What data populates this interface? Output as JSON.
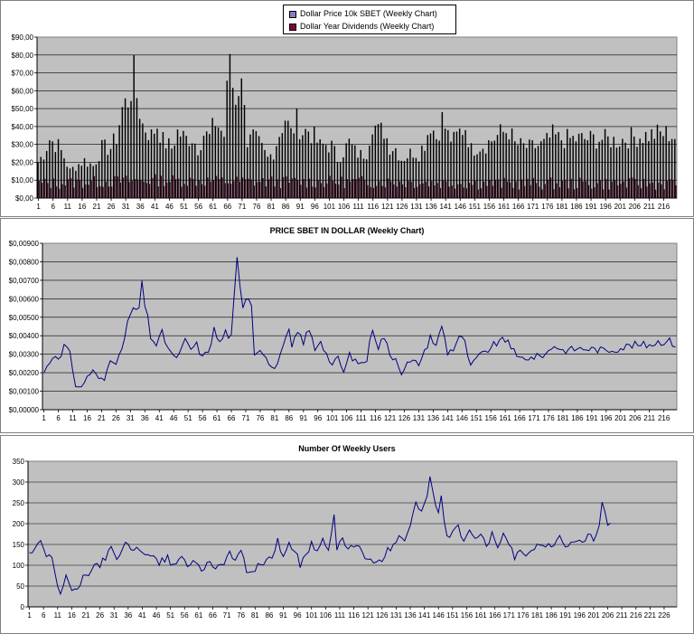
{
  "chart_data": [
    {
      "type": "bar",
      "title": "",
      "series": [
        {
          "name": "Dollar Price 10k SBET (Weekly Chart)",
          "color": "#8080c0",
          "values": []
        },
        {
          "name": "Dollar Year Dividends (Weekly Chart)",
          "color": "#800040",
          "values": []
        }
      ],
      "ylim": [
        0,
        90
      ],
      "yticks": [
        "$0,00",
        "$10,00",
        "$20,00",
        "$30,00",
        "$40,00",
        "$50,00",
        "$60,00",
        "$70,00",
        "$80,00",
        "$90,00"
      ],
      "xticks": [
        "1",
        "6",
        "11",
        "16",
        "21",
        "26",
        "31",
        "36",
        "41",
        "46",
        "51",
        "56",
        "61",
        "66",
        "71",
        "76",
        "81",
        "86",
        "91",
        "96",
        "101",
        "106",
        "111",
        "116",
        "121",
        "126",
        "131",
        "136",
        "141",
        "146",
        "151",
        "156",
        "161",
        "166",
        "171",
        "176",
        "181",
        "186",
        "191",
        "196",
        "201",
        "206",
        "211",
        "216"
      ],
      "n": 220,
      "price_points": [
        [
          1,
          20
        ],
        [
          3,
          25
        ],
        [
          5,
          33
        ],
        [
          8,
          29
        ],
        [
          10,
          23
        ],
        [
          12,
          15
        ],
        [
          14,
          18
        ],
        [
          17,
          21
        ],
        [
          20,
          18
        ],
        [
          23,
          28
        ],
        [
          26,
          28
        ],
        [
          28,
          34
        ],
        [
          30,
          50
        ],
        [
          32,
          55
        ],
        [
          34,
          68
        ],
        [
          35,
          57
        ],
        [
          37,
          41
        ],
        [
          40,
          35
        ],
        [
          42,
          41
        ],
        [
          44,
          32
        ],
        [
          47,
          28
        ],
        [
          49,
          37
        ],
        [
          52,
          33
        ],
        [
          54,
          34
        ],
        [
          56,
          28
        ],
        [
          58,
          36
        ],
        [
          60,
          34
        ],
        [
          62,
          43
        ],
        [
          65,
          35
        ],
        [
          67,
          82
        ],
        [
          68,
          63
        ],
        [
          69,
          57
        ],
        [
          70,
          63
        ],
        [
          72,
          60
        ],
        [
          73,
          31
        ],
        [
          75,
          34
        ],
        [
          77,
          30
        ],
        [
          80,
          22
        ],
        [
          82,
          26
        ],
        [
          84,
          36
        ],
        [
          86,
          45
        ],
        [
          88,
          36
        ],
        [
          90,
          43
        ],
        [
          92,
          37
        ],
        [
          94,
          38
        ],
        [
          96,
          34
        ],
        [
          98,
          29
        ],
        [
          100,
          30
        ],
        [
          102,
          29
        ],
        [
          104,
          22
        ],
        [
          106,
          26
        ],
        [
          108,
          31
        ],
        [
          110,
          26
        ],
        [
          112,
          24
        ],
        [
          114,
          26
        ],
        [
          116,
          43
        ],
        [
          118,
          37
        ],
        [
          120,
          38
        ],
        [
          122,
          29
        ],
        [
          124,
          28
        ],
        [
          126,
          22
        ],
        [
          128,
          24
        ],
        [
          130,
          26
        ],
        [
          132,
          25
        ],
        [
          134,
          31
        ],
        [
          136,
          42
        ],
        [
          138,
          34
        ],
        [
          140,
          44
        ],
        [
          142,
          35
        ],
        [
          144,
          32
        ],
        [
          146,
          37
        ],
        [
          148,
          40
        ],
        [
          150,
          27
        ],
        [
          152,
          29
        ],
        [
          155,
          30
        ],
        [
          160,
          36
        ],
        [
          163,
          38
        ],
        [
          165,
          30
        ],
        [
          170,
          28
        ],
        [
          175,
          30
        ],
        [
          178,
          35
        ],
        [
          180,
          33
        ],
        [
          185,
          33
        ],
        [
          190,
          33
        ],
        [
          195,
          33
        ],
        [
          200,
          32
        ],
        [
          205,
          34
        ],
        [
          210,
          35
        ],
        [
          215,
          36
        ],
        [
          218,
          36
        ],
        [
          220,
          34
        ]
      ],
      "div_points": [
        [
          1,
          8
        ],
        [
          40,
          10
        ],
        [
          80,
          9
        ],
        [
          120,
          9
        ],
        [
          160,
          8
        ],
        [
          200,
          8
        ],
        [
          220,
          8
        ]
      ]
    },
    {
      "type": "line",
      "title": "PRICE SBET IN DOLLAR (Weekly Chart)",
      "series": [
        {
          "name": "",
          "color": "#000080",
          "values": []
        }
      ],
      "ylim": [
        0,
        0.009
      ],
      "yticks": [
        "$0,00000",
        "$0,00100",
        "$0,00200",
        "$0,00300",
        "$0,00400",
        "$0,00500",
        "$0,00600",
        "$0,00700",
        "$0,00800",
        "$0,00900"
      ],
      "xticks": [
        "1",
        "6",
        "11",
        "16",
        "21",
        "26",
        "31",
        "36",
        "41",
        "46",
        "51",
        "56",
        "61",
        "66",
        "71",
        "76",
        "81",
        "86",
        "91",
        "96",
        "101",
        "106",
        "111",
        "116",
        "121",
        "126",
        "131",
        "136",
        "141",
        "146",
        "151",
        "156",
        "161",
        "166",
        "171",
        "176",
        "181",
        "186",
        "191",
        "196",
        "201",
        "206",
        "211",
        "216"
      ],
      "n": 220,
      "points": [
        [
          1,
          0.002
        ],
        [
          3,
          0.0026
        ],
        [
          5,
          0.003
        ],
        [
          7,
          0.0028
        ],
        [
          8,
          0.0035
        ],
        [
          10,
          0.003
        ],
        [
          12,
          0.0013
        ],
        [
          14,
          0.0012
        ],
        [
          16,
          0.0018
        ],
        [
          18,
          0.0021
        ],
        [
          20,
          0.0017
        ],
        [
          22,
          0.0016
        ],
        [
          24,
          0.0028
        ],
        [
          26,
          0.0026
        ],
        [
          28,
          0.0031
        ],
        [
          30,
          0.0048
        ],
        [
          32,
          0.0053
        ],
        [
          34,
          0.0055
        ],
        [
          35,
          0.0066
        ],
        [
          36,
          0.0057
        ],
        [
          38,
          0.004
        ],
        [
          40,
          0.0035
        ],
        [
          42,
          0.0041
        ],
        [
          44,
          0.0034
        ],
        [
          46,
          0.0028
        ],
        [
          48,
          0.003
        ],
        [
          50,
          0.0037
        ],
        [
          52,
          0.0033
        ],
        [
          54,
          0.0035
        ],
        [
          56,
          0.0028
        ],
        [
          58,
          0.0032
        ],
        [
          60,
          0.0043
        ],
        [
          62,
          0.0036
        ],
        [
          64,
          0.0042
        ],
        [
          66,
          0.0039
        ],
        [
          68,
          0.008
        ],
        [
          69,
          0.0065
        ],
        [
          70,
          0.0057
        ],
        [
          71,
          0.0063
        ],
        [
          73,
          0.0059
        ],
        [
          74,
          0.003
        ],
        [
          76,
          0.0034
        ],
        [
          78,
          0.0028
        ],
        [
          80,
          0.0022
        ],
        [
          82,
          0.0025
        ],
        [
          84,
          0.0033
        ],
        [
          86,
          0.0043
        ],
        [
          87,
          0.0033
        ],
        [
          89,
          0.0042
        ],
        [
          91,
          0.0037
        ],
        [
          93,
          0.0043
        ],
        [
          95,
          0.0033
        ],
        [
          97,
          0.0038
        ],
        [
          99,
          0.003
        ],
        [
          101,
          0.0024
        ],
        [
          103,
          0.0028
        ],
        [
          105,
          0.002
        ],
        [
          107,
          0.003
        ],
        [
          109,
          0.0026
        ],
        [
          111,
          0.0025
        ],
        [
          113,
          0.0027
        ],
        [
          115,
          0.0045
        ],
        [
          117,
          0.0034
        ],
        [
          119,
          0.004
        ],
        [
          121,
          0.0029
        ],
        [
          123,
          0.0028
        ],
        [
          125,
          0.002
        ],
        [
          127,
          0.0025
        ],
        [
          129,
          0.0026
        ],
        [
          131,
          0.0025
        ],
        [
          133,
          0.0031
        ],
        [
          135,
          0.004
        ],
        [
          137,
          0.0034
        ],
        [
          139,
          0.0046
        ],
        [
          141,
          0.0031
        ],
        [
          143,
          0.0033
        ],
        [
          145,
          0.004
        ],
        [
          147,
          0.0036
        ],
        [
          149,
          0.0023
        ],
        [
          151,
          0.0028
        ],
        [
          153,
          0.003
        ],
        [
          158,
          0.0036
        ],
        [
          162,
          0.0038
        ],
        [
          165,
          0.0028
        ],
        [
          170,
          0.0028
        ],
        [
          175,
          0.003
        ],
        [
          178,
          0.0035
        ],
        [
          181,
          0.0032
        ],
        [
          186,
          0.0033
        ],
        [
          190,
          0.0033
        ],
        [
          196,
          0.0032
        ],
        [
          200,
          0.0033
        ],
        [
          205,
          0.0035
        ],
        [
          210,
          0.0035
        ],
        [
          215,
          0.0037
        ],
        [
          218,
          0.0037
        ],
        [
          220,
          0.0035
        ]
      ]
    },
    {
      "type": "line",
      "title": "Number Of Weekly Users",
      "series": [
        {
          "name": "",
          "color": "#000080",
          "values": []
        }
      ],
      "ylim": [
        0,
        350
      ],
      "yticks": [
        "0",
        "50",
        "100",
        "150",
        "200",
        "250",
        "300",
        "350"
      ],
      "xticks": [
        "1",
        "6",
        "11",
        "16",
        "21",
        "26",
        "31",
        "36",
        "41",
        "46",
        "51",
        "56",
        "61",
        "66",
        "71",
        "76",
        "81",
        "86",
        "91",
        "96",
        "101",
        "106",
        "111",
        "116",
        "121",
        "126",
        "131",
        "136",
        "141",
        "146",
        "151",
        "156",
        "161",
        "166",
        "171",
        "176",
        "181",
        "186",
        "191",
        "196",
        "201",
        "206",
        "211",
        "216",
        "221",
        "226"
      ],
      "n": 230,
      "points": [
        [
          1,
          130
        ],
        [
          3,
          135
        ],
        [
          5,
          155
        ],
        [
          7,
          120
        ],
        [
          9,
          115
        ],
        [
          11,
          50
        ],
        [
          12,
          30
        ],
        [
          14,
          75
        ],
        [
          16,
          40
        ],
        [
          18,
          35
        ],
        [
          20,
          75
        ],
        [
          22,
          80
        ],
        [
          24,
          105
        ],
        [
          26,
          100
        ],
        [
          28,
          120
        ],
        [
          30,
          140
        ],
        [
          32,
          110
        ],
        [
          35,
          160
        ],
        [
          37,
          130
        ],
        [
          40,
          140
        ],
        [
          42,
          120
        ],
        [
          45,
          130
        ],
        [
          47,
          105
        ],
        [
          50,
          120
        ],
        [
          52,
          95
        ],
        [
          55,
          120
        ],
        [
          57,
          100
        ],
        [
          60,
          110
        ],
        [
          62,
          90
        ],
        [
          65,
          110
        ],
        [
          67,
          95
        ],
        [
          70,
          100
        ],
        [
          72,
          135
        ],
        [
          74,
          110
        ],
        [
          76,
          140
        ],
        [
          78,
          80
        ],
        [
          80,
          90
        ],
        [
          83,
          100
        ],
        [
          85,
          115
        ],
        [
          87,
          120
        ],
        [
          89,
          160
        ],
        [
          91,
          120
        ],
        [
          93,
          150
        ],
        [
          95,
          140
        ],
        [
          97,
          100
        ],
        [
          99,
          120
        ],
        [
          101,
          155
        ],
        [
          103,
          135
        ],
        [
          105,
          160
        ],
        [
          107,
          130
        ],
        [
          109,
          215
        ],
        [
          110,
          140
        ],
        [
          112,
          160
        ],
        [
          114,
          145
        ],
        [
          116,
          140
        ],
        [
          118,
          150
        ],
        [
          120,
          110
        ],
        [
          122,
          120
        ],
        [
          124,
          100
        ],
        [
          126,
          115
        ],
        [
          128,
          135
        ],
        [
          130,
          150
        ],
        [
          132,
          175
        ],
        [
          134,
          160
        ],
        [
          136,
          200
        ],
        [
          138,
          250
        ],
        [
          140,
          225
        ],
        [
          142,
          270
        ],
        [
          143,
          310
        ],
        [
          145,
          245
        ],
        [
          146,
          225
        ],
        [
          147,
          260
        ],
        [
          149,
          165
        ],
        [
          151,
          175
        ],
        [
          153,
          190
        ],
        [
          155,
          160
        ],
        [
          157,
          190
        ],
        [
          159,
          160
        ],
        [
          161,
          175
        ],
        [
          163,
          145
        ],
        [
          165,
          175
        ],
        [
          167,
          140
        ],
        [
          169,
          180
        ],
        [
          171,
          150
        ],
        [
          173,
          120
        ],
        [
          175,
          130
        ],
        [
          177,
          115
        ],
        [
          179,
          140
        ],
        [
          181,
          150
        ],
        [
          183,
          145
        ],
        [
          185,
          155
        ],
        [
          187,
          145
        ],
        [
          189,
          165
        ],
        [
          191,
          140
        ],
        [
          193,
          155
        ],
        [
          195,
          165
        ],
        [
          197,
          150
        ],
        [
          199,
          175
        ],
        [
          201,
          160
        ],
        [
          203,
          190
        ],
        [
          204,
          245
        ],
        [
          206,
          200
        ],
        [
          207,
          205
        ]
      ]
    }
  ],
  "legend": {
    "item1": "Dollar Price 10k SBET (Weekly Chart)",
    "item2": "Dollar Year Dividends (Weekly Chart)"
  }
}
